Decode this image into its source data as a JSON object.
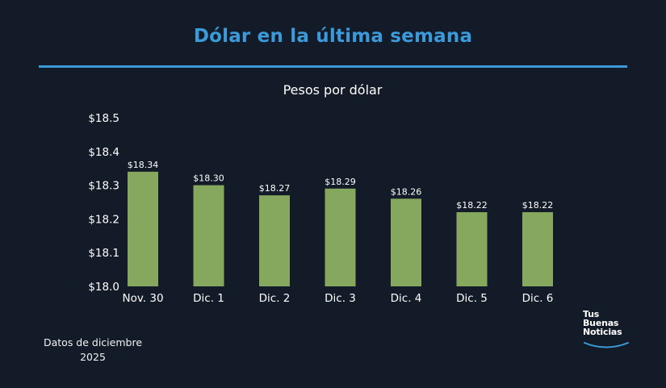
{
  "header": {
    "title": "Dólar en la última semana"
  },
  "footer": {
    "note_line1": "Datos de diciembre",
    "note_line2": "2025"
  },
  "logo": {
    "line1": "Tus",
    "line2": "Buenas",
    "line3": "Noticias"
  },
  "colors": {
    "background": "#121b27",
    "accent": "#3b9ad9",
    "bar": "#85a75e"
  },
  "chart_data": {
    "type": "bar",
    "title": "Pesos por dólar",
    "xlabel": "",
    "ylabel": "",
    "categories": [
      "Nov. 30",
      "Dic. 1",
      "Dic. 2",
      "Dic. 3",
      "Dic. 4",
      "Dic. 5",
      "Dic. 6"
    ],
    "values": [
      18.34,
      18.3,
      18.27,
      18.29,
      18.26,
      18.22,
      18.22
    ],
    "value_labels": [
      "$18.34",
      "$18.30",
      "$18.27",
      "$18.29",
      "$18.26",
      "$18.22",
      "$18.22"
    ],
    "ylim": [
      18.0,
      18.5
    ],
    "yticks": [
      18.0,
      18.1,
      18.2,
      18.3,
      18.4,
      18.5
    ],
    "ytick_labels": [
      "$18.0",
      "$18.1",
      "$18.2",
      "$18.3",
      "$18.4",
      "$18.5"
    ],
    "grid": false,
    "legend": "none"
  }
}
